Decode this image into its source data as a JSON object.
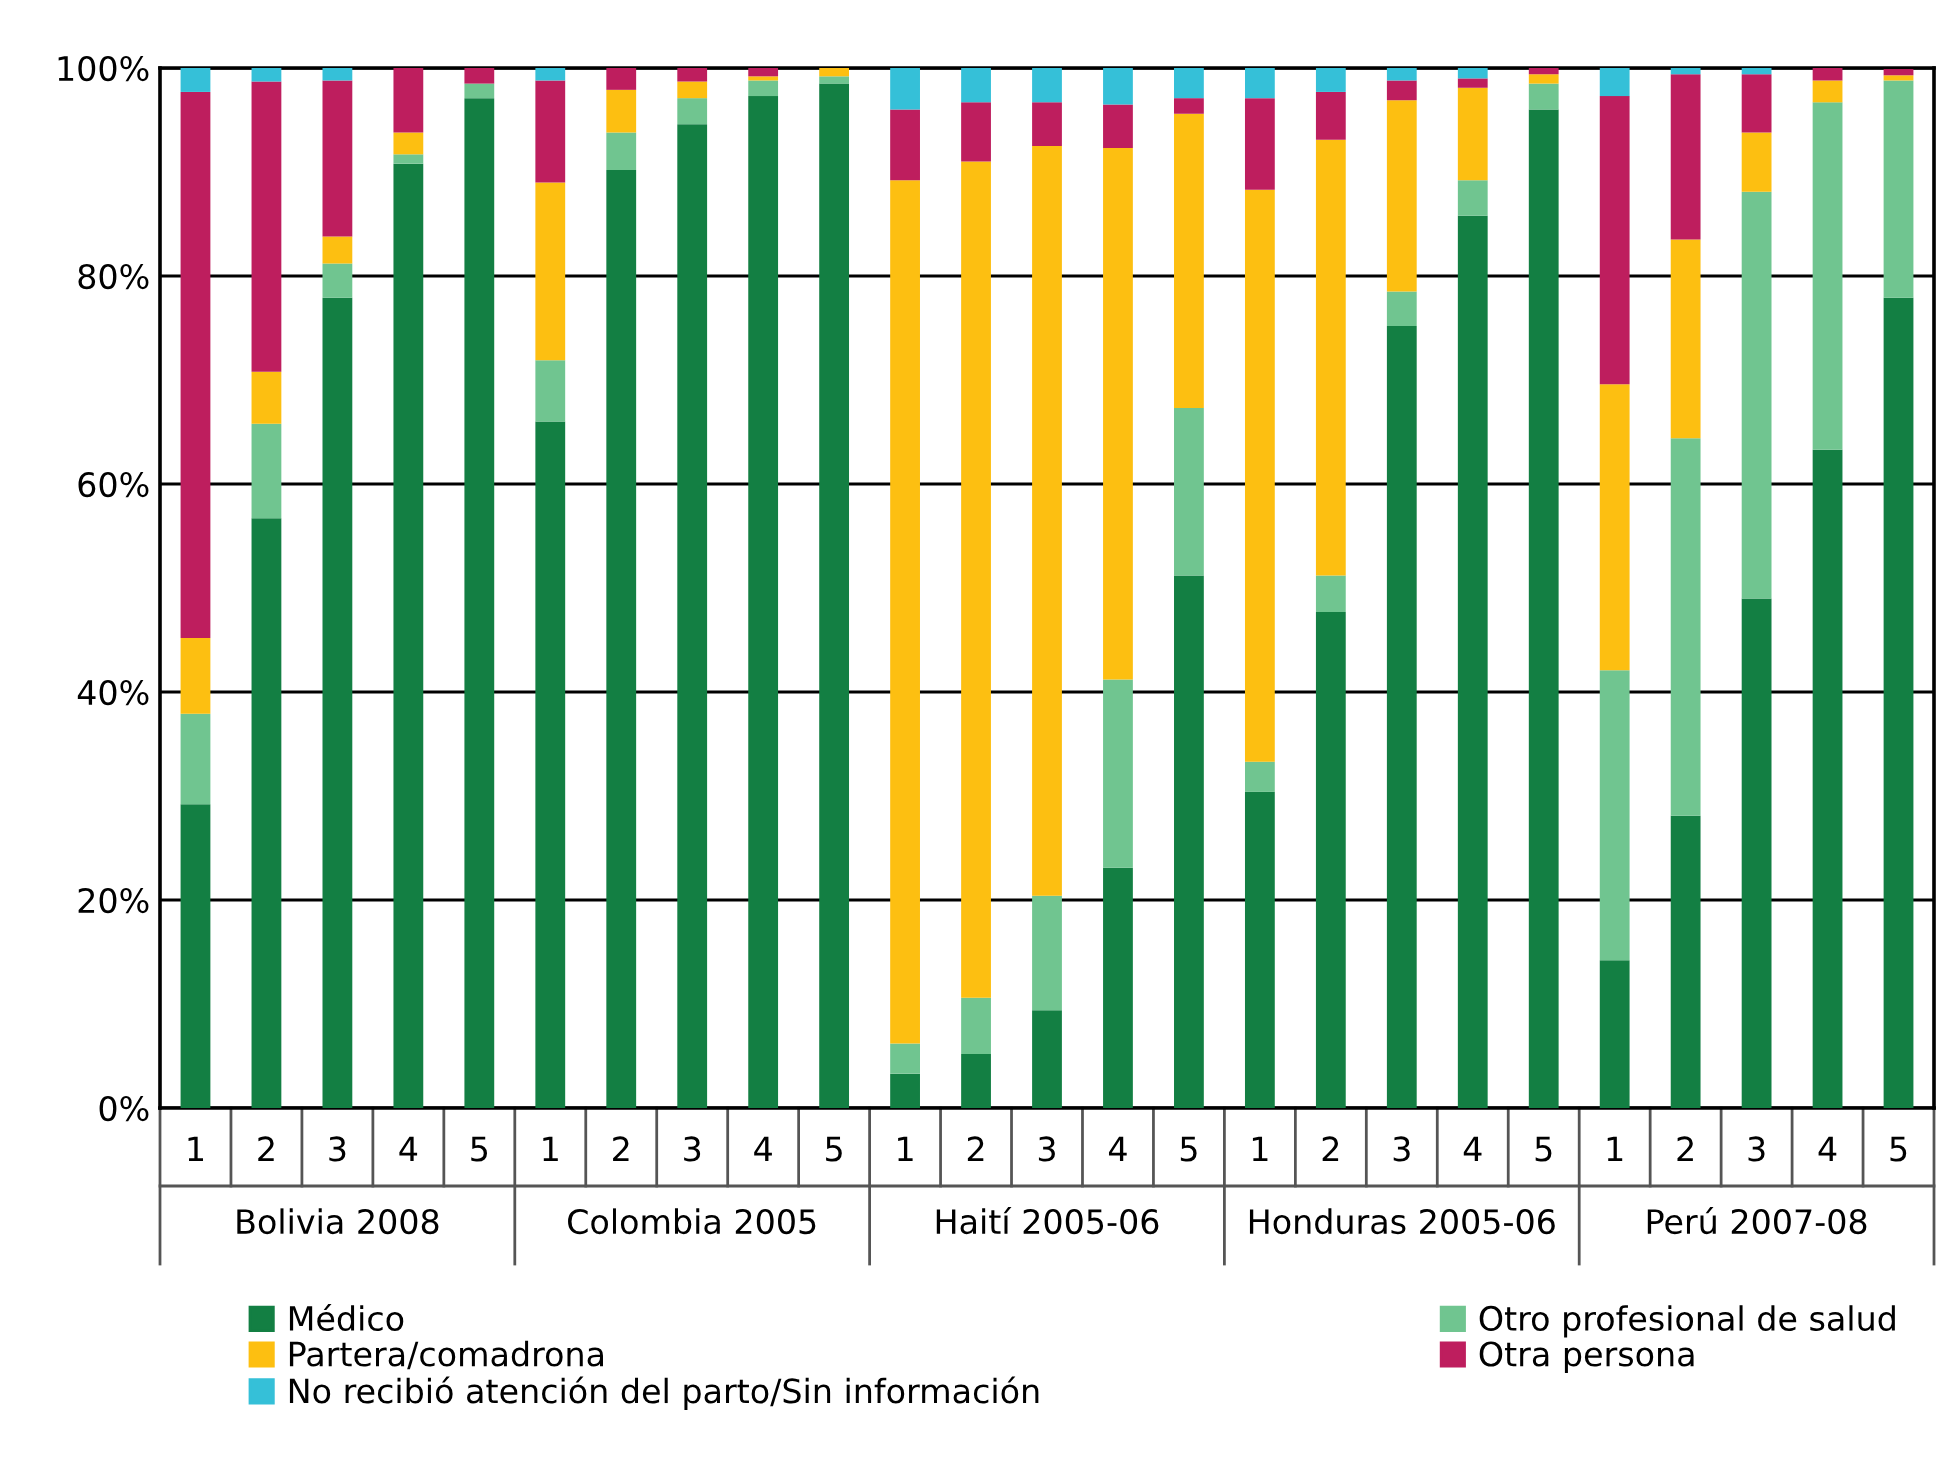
{
  "chart_data": {
    "type": "bar",
    "stacked": true,
    "categories": [
      "1",
      "2",
      "3",
      "4",
      "5",
      "1",
      "2",
      "3",
      "4",
      "5",
      "1",
      "2",
      "3",
      "4",
      "5",
      "1",
      "2",
      "3",
      "4",
      "5",
      "1",
      "2",
      "3",
      "4",
      "5"
    ],
    "annotations": [
      "Bolivia 2008",
      "Colombia 2005",
      "Haití 2005-06",
      "Honduras 2005-06",
      "Perú 2007-08"
    ],
    "series": [
      {
        "name": "Médico",
        "color": "#137f43",
        "values": [
          29.2,
          56.7,
          77.9,
          90.8,
          97.1,
          66.0,
          90.2,
          94.6,
          97.3,
          98.5,
          3.3,
          5.2,
          9.4,
          23.1,
          51.2,
          30.4,
          47.7,
          75.2,
          85.8,
          96.0,
          14.2,
          28.1,
          49.0,
          63.3,
          77.9
        ]
      },
      {
        "name": "Otro profesional de salud",
        "color": "#70c590",
        "values": [
          8.7,
          9.1,
          3.3,
          0.9,
          1.4,
          5.9,
          3.6,
          2.5,
          1.5,
          0.7,
          2.9,
          5.4,
          11.0,
          18.1,
          16.1,
          2.9,
          3.5,
          3.3,
          3.4,
          2.5,
          27.9,
          36.3,
          39.1,
          33.4,
          20.9
        ]
      },
      {
        "name": "Partera/comadrona",
        "color": "#fdbf11",
        "values": [
          7.3,
          5.0,
          2.6,
          2.1,
          0,
          17.1,
          4.1,
          1.6,
          0.4,
          0.8,
          83.0,
          80.4,
          72.1,
          51.1,
          28.3,
          55.0,
          41.9,
          18.4,
          8.9,
          0.9,
          27.5,
          19.1,
          5.7,
          2.1,
          0.5
        ]
      },
      {
        "name": "Otra persona",
        "color": "#be1e5e",
        "values": [
          52.5,
          27.9,
          15.0,
          6.2,
          1.5,
          9.8,
          2.1,
          1.3,
          0.8,
          0,
          6.8,
          5.7,
          4.2,
          4.2,
          1.5,
          8.8,
          4.6,
          1.9,
          0.9,
          0.6,
          27.7,
          15.9,
          5.6,
          1.2,
          0.6
        ]
      },
      {
        "name": "No recibió atención del parto/Sin información",
        "color": "#35c0d8",
        "values": [
          2.3,
          1.3,
          1.2,
          0,
          0,
          1.2,
          0,
          0,
          0,
          0,
          4.0,
          3.3,
          3.3,
          3.5,
          2.9,
          2.9,
          2.3,
          1.2,
          1.0,
          0,
          2.7,
          0.6,
          0.6,
          0,
          0
        ]
      }
    ],
    "ylim": [
      0,
      100
    ],
    "yticks": [
      {
        "value": 0,
        "label": "0%"
      },
      {
        "value": 20,
        "label": "20%"
      },
      {
        "value": 40,
        "label": "40%"
      },
      {
        "value": 60,
        "label": "60%"
      },
      {
        "value": 80,
        "label": "80%"
      },
      {
        "value": 100,
        "label": "100%"
      }
    ],
    "grid": "y",
    "legend": "bottom"
  }
}
